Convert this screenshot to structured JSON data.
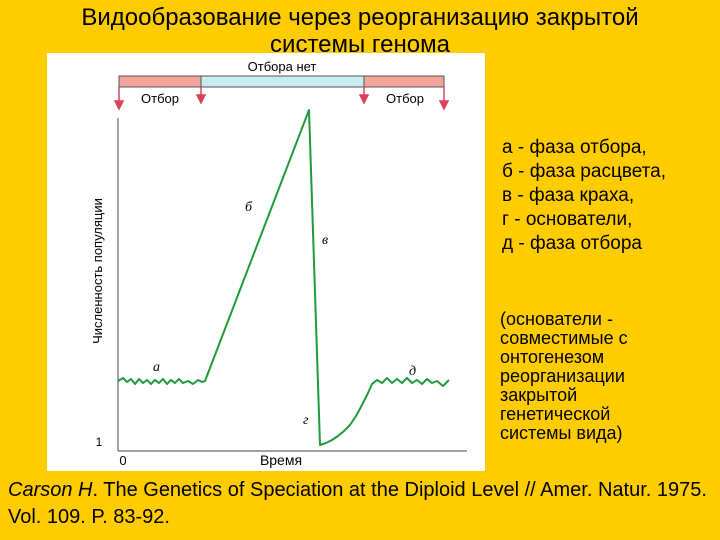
{
  "title": {
    "line1": "Видообразование через реорганизацию закрытой",
    "line2": "системы генома"
  },
  "diagram": {
    "selection_bar": {
      "no_selection": "Отбора нет",
      "selection_left": "Отбор",
      "selection_right": "Отбор"
    },
    "y_axis_label": "Численность популяции",
    "y_tick": "1",
    "x_origin": "0",
    "x_axis_label": "Время",
    "phase_labels": {
      "a": "а",
      "b": "б",
      "v": "в",
      "g": "г",
      "d": "д"
    },
    "colors": {
      "curve": "#1f9a3c",
      "selection_bar": "#f2a69b",
      "no_selection_bar": "#c9ecf3",
      "arrow": "#d8435a"
    }
  },
  "legend": {
    "items": [
      "а - фаза отбора,",
      "б - фаза расцвета,",
      "в - фаза краха,",
      "г - основатели,",
      "д - фаза отбора"
    ]
  },
  "note": {
    "lines": [
      "(основатели -",
      "совместимые с",
      "онтогенезом",
      "реорганизации",
      "закрытой",
      "генетической",
      "системы вида)"
    ]
  },
  "citation": {
    "author": "Carson H",
    "text": ". The Genetics of Speciation at the Diploid Level // Amer. Natur. 1975. Vol. 109. P. 83-92."
  }
}
